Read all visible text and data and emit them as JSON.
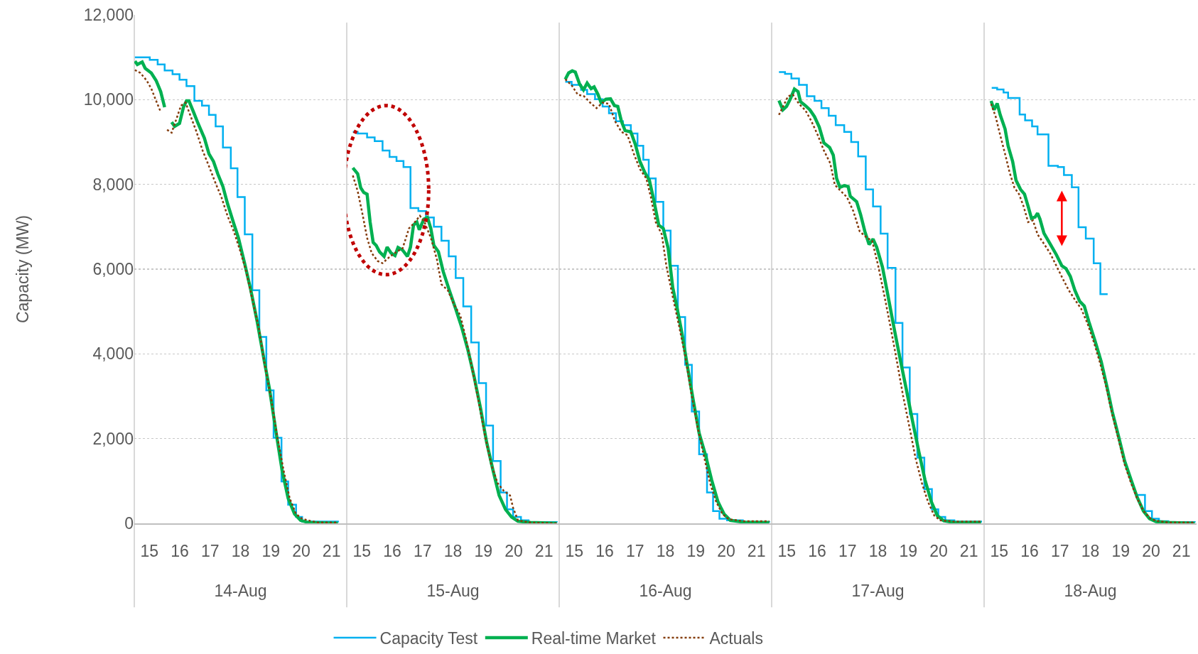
{
  "chart_data": [
    {
      "type": "line",
      "xlabel": "14-Aug",
      "ylabel": "Capacity (MW)",
      "xlim": [
        15,
        22
      ],
      "xticks": [
        {
          "value": 15.5,
          "label": "15"
        },
        {
          "value": 16.5,
          "label": "16"
        },
        {
          "value": 17.5,
          "label": "17"
        },
        {
          "value": 18.5,
          "label": "18"
        },
        {
          "value": 19.5,
          "label": "19"
        },
        {
          "value": 20.5,
          "label": "20"
        },
        {
          "value": 21.5,
          "label": "21"
        }
      ],
      "ylim": [
        0,
        12000
      ],
      "yticks": [
        0,
        {
          "value": 2000,
          "label": "2,000"
        },
        {
          "value": 4000,
          "label": "4,000"
        },
        {
          "value": 6000,
          "label": "6,000"
        },
        {
          "value": 8000,
          "label": "8,000"
        },
        {
          "value": 10000,
          "label": "10,000"
        },
        {
          "value": 12000,
          "label": "12,000"
        }
      ],
      "grid": "y",
      "legend": "bottom",
      "series": [
        {
          "name": "Capacity Test",
          "type": "step",
          "color": "#00b0f0",
          "line_style": "solid",
          "x": [
            15.02,
            15.51,
            15.77,
            16.0,
            16.26,
            16.49,
            16.72,
            16.98,
            17.23,
            17.46,
            17.68,
            17.92,
            18.18,
            18.4,
            18.64,
            18.89,
            19.12,
            19.35,
            19.59,
            19.85,
            20.07,
            20.33,
            20.53,
            21.71
          ],
          "values": [
            11000,
            10940,
            10830,
            10690,
            10600,
            10470,
            10320,
            9970,
            9860,
            9640,
            9370,
            8870,
            8380,
            7700,
            6820,
            5500,
            4400,
            3140,
            2020,
            990,
            440,
            150,
            40,
            20
          ]
        },
        {
          "name": "Real-time Market",
          "type": "line",
          "color": "#00b050",
          "line_style": "solid",
          "x": [
            15.02,
            15.1,
            15.26,
            15.36,
            15.56,
            15.72,
            15.87,
            16.0,
            16.1,
            16.23,
            16.33,
            16.49,
            16.62,
            16.72,
            16.8,
            16.95,
            17.1,
            17.31,
            17.46,
            17.61,
            17.75,
            17.92,
            18.07,
            18.28,
            18.43,
            18.64,
            18.84,
            19.05,
            19.25,
            19.46,
            19.66,
            19.87,
            20.07,
            20.28,
            20.48,
            20.74,
            21.71
          ],
          "values": [
            10910,
            10830,
            10890,
            10740,
            10630,
            10450,
            10190,
            9820,
            null,
            9470,
            9370,
            9440,
            9820,
            9970,
            9970,
            9710,
            9440,
            9090,
            8720,
            8540,
            8250,
            7950,
            7550,
            7070,
            6740,
            6120,
            5500,
            4760,
            3960,
            3150,
            2200,
            1250,
            590,
            220,
            70,
            20,
            0
          ]
        },
        {
          "name": "Actuals",
          "type": "line",
          "color": "#843c0c",
          "line_style": "dotted",
          "x": [
            15.02,
            15.2,
            15.41,
            15.56,
            15.72,
            15.87,
            15.98,
            16.08,
            16.23,
            16.38,
            16.54,
            16.69,
            16.84,
            17.05,
            17.25,
            17.46,
            17.66,
            17.87,
            18.07,
            18.28,
            18.48,
            18.69,
            18.89,
            19.1,
            19.3,
            19.51,
            19.71,
            19.92,
            20.12,
            20.33,
            20.53,
            20.79,
            21.05,
            21.71
          ],
          "values": [
            10700,
            10630,
            10450,
            10260,
            9970,
            9710,
            null,
            9290,
            9220,
            9530,
            9860,
            9930,
            9640,
            9240,
            8800,
            8430,
            8060,
            7700,
            7260,
            6890,
            6450,
            5940,
            5280,
            4620,
            3740,
            2930,
            2050,
            1250,
            590,
            220,
            110,
            60,
            20,
            20
          ]
        }
      ]
    },
    {
      "type": "line",
      "xlabel": "15-Aug",
      "xlim": [
        15,
        22
      ],
      "xticks": [
        {
          "value": 15.5,
          "label": "15"
        },
        {
          "value": 16.5,
          "label": "16"
        },
        {
          "value": 17.5,
          "label": "17"
        },
        {
          "value": 18.5,
          "label": "18"
        },
        {
          "value": 19.5,
          "label": "19"
        },
        {
          "value": 20.5,
          "label": "20"
        },
        {
          "value": 21.5,
          "label": "21"
        }
      ],
      "ylim": [
        0,
        12000
      ],
      "yticks": [
        {
          "value": 0,
          "label": null
        },
        {
          "value": 2000,
          "label": null
        },
        {
          "value": 4000,
          "label": null
        },
        {
          "value": 6000,
          "label": null
        },
        {
          "value": 8000,
          "label": null
        },
        {
          "value": 10000,
          "label": null
        },
        {
          "value": 12000,
          "label": null
        }
      ],
      "grid": "y",
      "tick_labels": "x",
      "series": [
        {
          "type": "step",
          "color": "#00b0f0",
          "line_style": "solid",
          "x": [
            15.2,
            15.36,
            15.67,
            15.92,
            16.18,
            16.41,
            16.64,
            16.87,
            17.1,
            17.36,
            17.61,
            17.87,
            18.12,
            18.36,
            18.59,
            18.84,
            19.1,
            19.35,
            19.59,
            19.82,
            20.07,
            20.28,
            20.48,
            20.74,
            20.99,
            21.92
          ],
          "values": [
            9240,
            9200,
            9110,
            9020,
            8800,
            8650,
            8550,
            8410,
            7440,
            7370,
            7220,
            7000,
            6670,
            6300,
            5790,
            5120,
            4270,
            3310,
            2310,
            1470,
            730,
            330,
            150,
            70,
            30,
            20
          ]
        },
        {
          "type": "line",
          "color": "#00b050",
          "line_style": "solid",
          "x": [
            15.2,
            15.36,
            15.46,
            15.56,
            15.67,
            15.77,
            15.87,
            15.97,
            16.08,
            16.23,
            16.33,
            16.46,
            16.59,
            16.69,
            16.84,
            17.0,
            17.1,
            17.2,
            17.31,
            17.39,
            17.54,
            17.66,
            17.77,
            17.87,
            18.02,
            18.18,
            18.38,
            18.59,
            18.79,
            18.99,
            19.2,
            19.41,
            19.61,
            19.82,
            20.02,
            20.23,
            20.43,
            20.64,
            21.05,
            21.92
          ],
          "values": [
            8390,
            8250,
            7920,
            7810,
            7770,
            7110,
            6630,
            6560,
            6410,
            6300,
            6520,
            6380,
            6320,
            6510,
            6450,
            6300,
            6520,
            7040,
            7110,
            6930,
            7180,
            7220,
            6960,
            6560,
            6410,
            5940,
            5500,
            5060,
            4620,
            4100,
            3450,
            2710,
            1910,
            1250,
            660,
            330,
            150,
            50,
            20,
            0
          ]
        },
        {
          "type": "line",
          "color": "#843c0c",
          "line_style": "dotted",
          "x": [
            15.2,
            15.36,
            15.51,
            15.67,
            15.82,
            16.02,
            16.18,
            16.38,
            16.64,
            16.84,
            17.05,
            17.2,
            17.41,
            17.56,
            17.77,
            17.97,
            18.12,
            18.33,
            18.53,
            18.74,
            18.94,
            19.15,
            19.35,
            19.56,
            19.76,
            19.97,
            20.17,
            20.38,
            20.48,
            20.64,
            21.05,
            21.92
          ],
          "values": [
            8210,
            7840,
            7330,
            6740,
            6380,
            6190,
            6140,
            6270,
            6410,
            6490,
            6960,
            7070,
            7260,
            7110,
            6740,
            6230,
            5640,
            5500,
            5170,
            4910,
            4320,
            3590,
            2860,
            2050,
            1390,
            950,
            770,
            660,
            370,
            70,
            20,
            0
          ]
        }
      ]
    },
    {
      "type": "line",
      "xlabel": "16-Aug",
      "xlim": [
        15,
        22
      ],
      "xticks": [
        {
          "value": 15.5,
          "label": "15"
        },
        {
          "value": 16.5,
          "label": "16"
        },
        {
          "value": 17.5,
          "label": "17"
        },
        {
          "value": 18.5,
          "label": "18"
        },
        {
          "value": 19.5,
          "label": "19"
        },
        {
          "value": 20.5,
          "label": "20"
        },
        {
          "value": 21.5,
          "label": "21"
        }
      ],
      "ylim": [
        0,
        12000
      ],
      "yticks": [
        {
          "value": 0,
          "label": null
        },
        {
          "value": 2000,
          "label": null
        },
        {
          "value": 4000,
          "label": null
        },
        {
          "value": 6000,
          "label": null
        },
        {
          "value": 8000,
          "label": null
        },
        {
          "value": 10000,
          "label": null
        },
        {
          "value": 12000,
          "label": null
        }
      ],
      "grid": "y",
      "tick_labels": "x",
      "series": [
        {
          "type": "step",
          "color": "#00b0f0",
          "line_style": "solid",
          "x": [
            15.2,
            15.41,
            15.72,
            15.92,
            16.18,
            16.43,
            16.64,
            16.87,
            17.1,
            17.36,
            17.58,
            17.77,
            17.95,
            18.18,
            18.43,
            18.67,
            18.91,
            19.15,
            19.37,
            19.61,
            19.87,
            20.07,
            20.28,
            20.53,
            21.05,
            21.92
          ],
          "values": [
            10420,
            10350,
            10230,
            10130,
            10010,
            9840,
            9680,
            9490,
            9400,
            9200,
            8910,
            8580,
            8140,
            7590,
            6910,
            6080,
            4870,
            3740,
            2640,
            1630,
            730,
            290,
            110,
            70,
            30,
            20
          ]
        },
        {
          "type": "line",
          "color": "#00b050",
          "line_style": "solid",
          "x": [
            15.2,
            15.31,
            15.43,
            15.53,
            15.67,
            15.8,
            15.92,
            16.05,
            16.15,
            16.28,
            16.38,
            16.54,
            16.69,
            16.82,
            16.93,
            17.05,
            17.17,
            17.36,
            17.51,
            17.66,
            17.82,
            17.97,
            18.12,
            18.28,
            18.43,
            18.59,
            18.74,
            18.89,
            19.05,
            19.2,
            19.41,
            19.61,
            19.82,
            20.02,
            20.23,
            20.43,
            20.64,
            21.05,
            21.92
          ],
          "values": [
            10480,
            10630,
            10680,
            10650,
            10370,
            10230,
            10390,
            10260,
            10300,
            10120,
            9930,
            10010,
            10020,
            9860,
            9840,
            9490,
            9270,
            9240,
            8940,
            8540,
            8280,
            8100,
            7620,
            7040,
            6960,
            6490,
            5570,
            5060,
            4470,
            3810,
            2930,
            2130,
            1610,
            1030,
            510,
            220,
            70,
            30,
            20
          ]
        },
        {
          "type": "line",
          "color": "#843c0c",
          "line_style": "dotted",
          "x": [
            15.2,
            15.41,
            15.61,
            15.82,
            16.02,
            16.23,
            16.43,
            16.64,
            16.84,
            17.05,
            17.25,
            17.46,
            17.66,
            17.87,
            18.02,
            18.18,
            18.38,
            18.53,
            18.74,
            18.94,
            19.15,
            19.35,
            19.56,
            19.76,
            19.97,
            20.17,
            20.38,
            20.58,
            21.05,
            21.92
          ],
          "values": [
            10480,
            10340,
            10120,
            10080,
            9930,
            9800,
            9930,
            9900,
            9490,
            9240,
            9160,
            8720,
            8360,
            8140,
            7700,
            7110,
            6820,
            6080,
            5350,
            4690,
            3960,
            3080,
            2270,
            1610,
            950,
            510,
            220,
            100,
            50,
            50
          ]
        }
      ]
    },
    {
      "type": "line",
      "xlabel": "17-Aug",
      "xlim": [
        15,
        22
      ],
      "xticks": [
        {
          "value": 15.5,
          "label": "15"
        },
        {
          "value": 16.5,
          "label": "16"
        },
        {
          "value": 17.5,
          "label": "17"
        },
        {
          "value": 18.5,
          "label": "18"
        },
        {
          "value": 19.5,
          "label": "19"
        },
        {
          "value": 20.5,
          "label": "20"
        },
        {
          "value": 21.5,
          "label": "21"
        }
      ],
      "ylim": [
        0,
        12000
      ],
      "yticks": [
        {
          "value": 0,
          "label": null
        },
        {
          "value": 2000,
          "label": null
        },
        {
          "value": 4000,
          "label": null
        },
        {
          "value": 6000,
          "label": null
        },
        {
          "value": 8000,
          "label": null
        },
        {
          "value": 10000,
          "label": null
        },
        {
          "value": 12000,
          "label": null
        }
      ],
      "grid": "y",
      "tick_labels": "x",
      "series": [
        {
          "type": "step",
          "color": "#00b0f0",
          "line_style": "solid",
          "x": [
            15.24,
            15.44,
            15.65,
            15.9,
            16.16,
            16.41,
            16.64,
            16.88,
            17.11,
            17.39,
            17.62,
            17.85,
            18.1,
            18.34,
            18.59,
            18.82,
            19.08,
            19.31,
            19.55,
            19.8,
            20.03,
            20.28,
            20.49,
            20.72,
            21.02,
            21.9
          ],
          "values": [
            10650,
            10610,
            10500,
            10350,
            10080,
            9970,
            9800,
            9620,
            9400,
            9240,
            9000,
            8660,
            7880,
            7480,
            6840,
            6030,
            4730,
            3680,
            2580,
            1550,
            810,
            330,
            150,
            70,
            40,
            20
          ]
        },
        {
          "type": "line",
          "color": "#00b050",
          "line_style": "solid",
          "x": [
            15.24,
            15.37,
            15.49,
            15.61,
            15.75,
            15.87,
            15.95,
            16.11,
            16.26,
            16.41,
            16.57,
            16.72,
            16.91,
            17.03,
            17.14,
            17.25,
            17.39,
            17.52,
            17.59,
            17.8,
            17.93,
            18.07,
            18.21,
            18.34,
            18.46,
            18.65,
            18.82,
            19.03,
            19.23,
            19.44,
            19.64,
            19.85,
            20.05,
            20.26,
            20.46,
            20.67,
            21.02,
            21.9
          ],
          "values": [
            9980,
            9760,
            9840,
            10010,
            10250,
            10190,
            9950,
            9860,
            9760,
            9600,
            9350,
            8980,
            8870,
            8690,
            8140,
            7930,
            7970,
            7950,
            7720,
            7590,
            7290,
            6890,
            6580,
            6710,
            6520,
            6050,
            5420,
            4620,
            3890,
            3150,
            2420,
            1690,
            1030,
            510,
            180,
            60,
            20,
            20
          ]
        },
        {
          "type": "line",
          "color": "#843c0c",
          "line_style": "dotted",
          "x": [
            15.24,
            15.39,
            15.54,
            15.7,
            15.9,
            16.11,
            16.31,
            16.52,
            16.72,
            16.93,
            17.08,
            17.28,
            17.48,
            17.69,
            17.9,
            18.14,
            18.31,
            18.51,
            18.72,
            18.92,
            19.13,
            19.33,
            19.54,
            19.74,
            19.95,
            20.15,
            20.36,
            20.56,
            21.02,
            21.9
          ],
          "values": [
            9640,
            9860,
            10080,
            10120,
            9900,
            9750,
            9490,
            9160,
            8800,
            8500,
            7990,
            7840,
            7700,
            7370,
            6890,
            6740,
            6670,
            6080,
            5350,
            4620,
            3810,
            3010,
            2270,
            1540,
            950,
            510,
            180,
            70,
            40,
            40
          ]
        }
      ]
    },
    {
      "type": "line",
      "xlabel": "18-Aug",
      "xlim": [
        15,
        22
      ],
      "xticks": [
        {
          "value": 15.5,
          "label": "15"
        },
        {
          "value": 16.5,
          "label": "16"
        },
        {
          "value": 17.5,
          "label": "17"
        },
        {
          "value": 18.5,
          "label": "18"
        },
        {
          "value": 19.5,
          "label": "19"
        },
        {
          "value": 20.5,
          "label": "20"
        },
        {
          "value": 21.5,
          "label": "21"
        }
      ],
      "ylim": [
        0,
        12000
      ],
      "yticks": [
        {
          "value": 0,
          "label": null
        },
        {
          "value": 2000,
          "label": null
        },
        {
          "value": 4000,
          "label": null
        },
        {
          "value": 6000,
          "label": null
        },
        {
          "value": 8000,
          "label": null
        },
        {
          "value": 10000,
          "label": null
        },
        {
          "value": 12000,
          "label": null
        }
      ],
      "grid": "y",
      "tick_labels": "x",
      "series": [
        {
          "type": "step",
          "color": "#00b0f0",
          "line_style": "solid",
          "x": [
            15.25,
            15.43,
            15.64,
            15.79,
            16.17,
            16.35,
            16.58,
            16.76,
            17.12,
            17.43,
            17.63,
            17.89,
            18.11,
            18.35,
            18.61,
            18.83,
            19.07,
            19.5,
            20.04,
            20.3,
            20.53,
            20.76,
            21.07,
            21.94
          ],
          "values": [
            10280,
            10240,
            10170,
            10040,
            9650,
            9510,
            9370,
            9180,
            8440,
            8410,
            8220,
            7930,
            6990,
            6720,
            6140,
            5410,
            5410,
            null,
            670,
            290,
            110,
            50,
            30,
            20
          ]
        },
        {
          "type": "line",
          "color": "#00b050",
          "line_style": "solid",
          "x": [
            15.23,
            15.33,
            15.43,
            15.53,
            15.69,
            15.79,
            15.94,
            16.05,
            16.2,
            16.33,
            16.45,
            16.56,
            16.68,
            16.76,
            16.84,
            16.97,
            17.17,
            17.38,
            17.56,
            17.7,
            17.84,
            17.99,
            18.15,
            18.3,
            18.45,
            18.66,
            18.86,
            19.07,
            19.22,
            19.43,
            19.63,
            19.84,
            20.04,
            20.25,
            20.45,
            20.66,
            21.07,
            21.94
          ],
          "values": [
            9970,
            9760,
            9910,
            9640,
            9310,
            8910,
            8540,
            8100,
            7880,
            7770,
            7480,
            7200,
            7230,
            7320,
            7180,
            6850,
            6600,
            6340,
            6080,
            6010,
            5830,
            5500,
            5240,
            5130,
            4760,
            4290,
            3810,
            3150,
            2640,
            2050,
            1470,
            1030,
            620,
            290,
            110,
            40,
            20,
            0
          ]
        },
        {
          "type": "line",
          "color": "#843c0c",
          "line_style": "dotted",
          "x": [
            15.23,
            15.38,
            15.53,
            15.69,
            15.84,
            16.0,
            16.15,
            16.3,
            16.45,
            16.61,
            16.76,
            16.97,
            17.17,
            17.38,
            17.58,
            17.79,
            17.99,
            18.2,
            18.4,
            18.61,
            18.81,
            19.02,
            19.22,
            19.43,
            19.63,
            19.84,
            20.04,
            20.25,
            20.45,
            20.66,
            21.07,
            21.94
          ],
          "values": [
            9900,
            9600,
            9160,
            8720,
            8280,
            7920,
            7770,
            7480,
            7110,
            7150,
            6820,
            6600,
            6380,
            6080,
            5790,
            5500,
            5280,
            5060,
            4730,
            4290,
            3810,
            3230,
            2570,
            1980,
            1390,
            950,
            590,
            290,
            130,
            60,
            20,
            20
          ]
        }
      ]
    }
  ]
}
